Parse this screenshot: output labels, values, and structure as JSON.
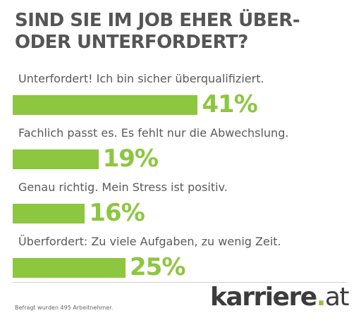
{
  "title": "SIND SIE IM JOB EHER ÜBER- ODER UNTERFORDERT?",
  "chart_data": {
    "type": "bar",
    "orientation": "horizontal",
    "categories": [
      "Unterfordert! Ich bin sicher überqualifiziert.",
      "Fachlich passt es. Es fehlt nur die Abwechslung.",
      "Genau richtig. Mein Stress ist positiv.",
      "Überfordert: Zu viele Aufgaben, zu wenig Zeit."
    ],
    "values": [
      41,
      19,
      16,
      25
    ],
    "value_labels": [
      "41%",
      "19%",
      "16%",
      "25%"
    ],
    "unit": "%",
    "bar_color": "#8dc63f",
    "xlim": [
      0,
      100
    ],
    "grid": false
  },
  "footnote": "Befragt wurden 495 Arbeitnehmer.",
  "logo": {
    "word": "karriere",
    "dot": ".",
    "suffix": "at"
  },
  "colors": {
    "accent": "#8dc63f",
    "title": "#555555",
    "text": "#5a5a5a",
    "logo": "#3c3c3c"
  }
}
